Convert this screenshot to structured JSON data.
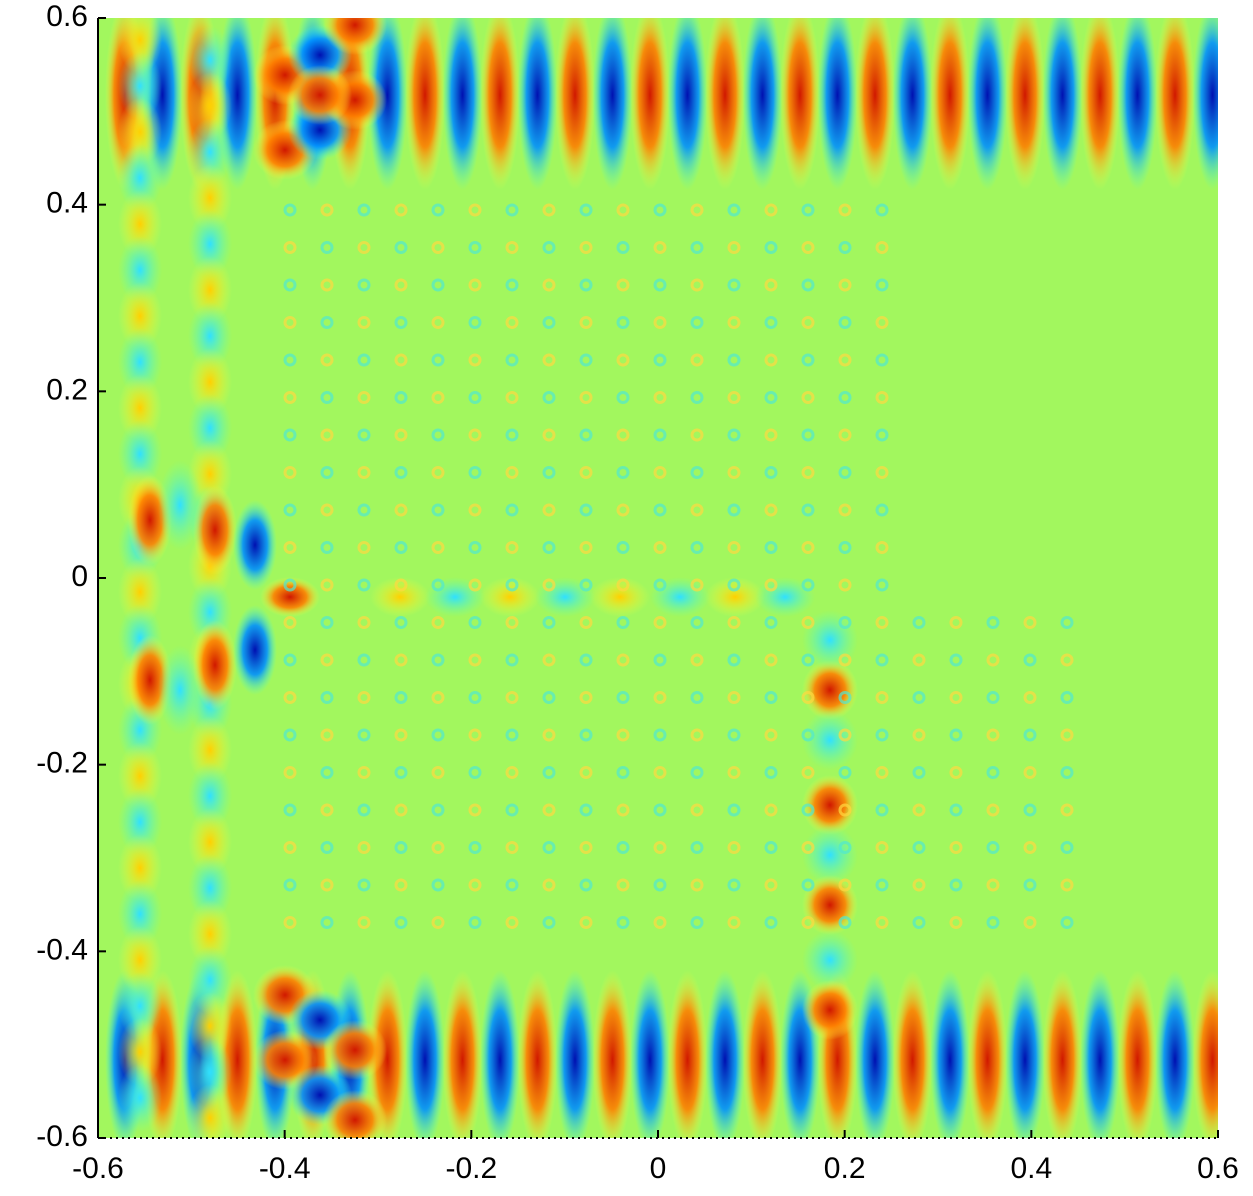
{
  "chart_data": {
    "type": "heatmap",
    "xlim": [
      -0.6,
      0.6
    ],
    "ylim": [
      -0.6,
      0.6
    ],
    "xticks": [
      -0.6,
      -0.4,
      -0.2,
      0,
      0.2,
      0.4,
      0.6
    ],
    "yticks": [
      -0.6,
      -0.4,
      -0.2,
      0,
      0.2,
      0.4,
      0.6
    ]
  }
}
